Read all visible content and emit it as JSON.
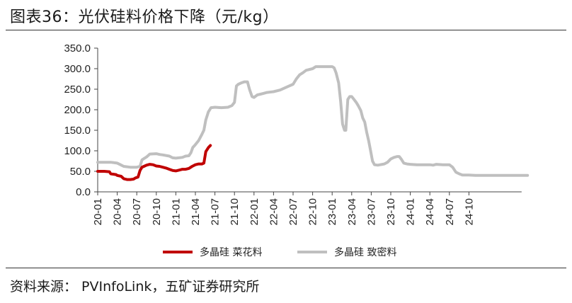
{
  "header": {
    "title": "图表36：光伏硅料价格下降（元/kg）"
  },
  "footer": {
    "source": "资料来源：  PVInfoLink，五矿证券研究所"
  },
  "chart_data": {
    "type": "line",
    "ylim": [
      0,
      350
    ],
    "yticks": [
      0,
      50,
      100,
      150,
      200,
      250,
      300,
      350
    ],
    "ytick_labels": [
      "0.0",
      "50.0",
      "100.0",
      "150.0",
      "200.0",
      "250.0",
      "300.0",
      "350.0"
    ],
    "xticks": [
      "20-01",
      "20-04",
      "20-07",
      "20-10",
      "21-01",
      "21-04",
      "21-07",
      "21-10",
      "22-01",
      "22-04",
      "22-07",
      "22-10",
      "23-01",
      "23-04",
      "23-07",
      "23-10",
      "24-01",
      "24-04",
      "24-07",
      "24-10"
    ],
    "x_unit": "month index from 2020-01",
    "legend_position": "bottom",
    "series": [
      {
        "name": "多晶硅 菜花料",
        "color": "#c00000",
        "points": [
          [
            0,
            50
          ],
          [
            1,
            50
          ],
          [
            1.8,
            49
          ],
          [
            2,
            44
          ],
          [
            2.8,
            42
          ],
          [
            3,
            40
          ],
          [
            3.6,
            38
          ],
          [
            4,
            32
          ],
          [
            4.5,
            30
          ],
          [
            5,
            30
          ],
          [
            5.5,
            31
          ],
          [
            5.8,
            34
          ],
          [
            6.2,
            36
          ],
          [
            6.5,
            52
          ],
          [
            6.8,
            60
          ],
          [
            7.1,
            62
          ],
          [
            7.5,
            65
          ],
          [
            8,
            67
          ],
          [
            8.5,
            66
          ],
          [
            9,
            63
          ],
          [
            9.5,
            62
          ],
          [
            10,
            60
          ],
          [
            10.5,
            58
          ],
          [
            11,
            55
          ],
          [
            11.5,
            52
          ],
          [
            12,
            51
          ],
          [
            12.5,
            53
          ],
          [
            13,
            55
          ],
          [
            13.5,
            55
          ],
          [
            14,
            57
          ],
          [
            14.5,
            62
          ],
          [
            15,
            66
          ],
          [
            15.5,
            68
          ],
          [
            16,
            68
          ],
          [
            16.3,
            70
          ],
          [
            16.6,
            98
          ],
          [
            17,
            108
          ],
          [
            17.3,
            113
          ]
        ]
      },
      {
        "name": "多晶硅 致密料",
        "color": "#bfbfbf",
        "points": [
          [
            0,
            72
          ],
          [
            1,
            72
          ],
          [
            2,
            72
          ],
          [
            3,
            70
          ],
          [
            3.5,
            66
          ],
          [
            4,
            62
          ],
          [
            5,
            60
          ],
          [
            6,
            60
          ],
          [
            6.5,
            62
          ],
          [
            6.8,
            78
          ],
          [
            7.5,
            85
          ],
          [
            8,
            92
          ],
          [
            9,
            93
          ],
          [
            9.5,
            91
          ],
          [
            10,
            90
          ],
          [
            11,
            87
          ],
          [
            11.5,
            83
          ],
          [
            12,
            82
          ],
          [
            13,
            84
          ],
          [
            13.5,
            87
          ],
          [
            14,
            88
          ],
          [
            14.3,
            95
          ],
          [
            14.6,
            108
          ],
          [
            15,
            115
          ],
          [
            15.5,
            125
          ],
          [
            16,
            140
          ],
          [
            16.3,
            150
          ],
          [
            16.6,
            175
          ],
          [
            17,
            195
          ],
          [
            17.4,
            205
          ],
          [
            18,
            206
          ],
          [
            19,
            205
          ],
          [
            20,
            206
          ],
          [
            20.6,
            210
          ],
          [
            21,
            218
          ],
          [
            21.3,
            258
          ],
          [
            21.6,
            262
          ],
          [
            22,
            265
          ],
          [
            22.5,
            268
          ],
          [
            23,
            268
          ],
          [
            23.3,
            250
          ],
          [
            23.7,
            232
          ],
          [
            24,
            230
          ],
          [
            24.5,
            236
          ],
          [
            25,
            238
          ],
          [
            25.5,
            240
          ],
          [
            26,
            242
          ],
          [
            27,
            244
          ],
          [
            28,
            248
          ],
          [
            29,
            255
          ],
          [
            30,
            262
          ],
          [
            30.5,
            275
          ],
          [
            31,
            285
          ],
          [
            31.5,
            290
          ],
          [
            32,
            296
          ],
          [
            33,
            300
          ],
          [
            33.5,
            305
          ],
          [
            35,
            305
          ],
          [
            36,
            305
          ],
          [
            36.3,
            302
          ],
          [
            36.6,
            290
          ],
          [
            37,
            265
          ],
          [
            37.3,
            220
          ],
          [
            37.6,
            165
          ],
          [
            37.9,
            150
          ],
          [
            38.1,
            150
          ],
          [
            38.4,
            225
          ],
          [
            38.7,
            232
          ],
          [
            39,
            232
          ],
          [
            39.3,
            226
          ],
          [
            39.7,
            218
          ],
          [
            40,
            210
          ],
          [
            40.4,
            198
          ],
          [
            40.7,
            180
          ],
          [
            41,
            170
          ],
          [
            41.3,
            145
          ],
          [
            41.6,
            125
          ],
          [
            41.9,
            100
          ],
          [
            42.2,
            75
          ],
          [
            42.5,
            66
          ],
          [
            43,
            65
          ],
          [
            44,
            68
          ],
          [
            44.5,
            72
          ],
          [
            45,
            80
          ],
          [
            45.5,
            84
          ],
          [
            46,
            86
          ],
          [
            46.3,
            86
          ],
          [
            46.6,
            80
          ],
          [
            47,
            70
          ],
          [
            47.5,
            68
          ],
          [
            48,
            67
          ],
          [
            49,
            66
          ],
          [
            50,
            66
          ],
          [
            51,
            66
          ],
          [
            51.5,
            65
          ],
          [
            52,
            67
          ],
          [
            53,
            66
          ],
          [
            54,
            66
          ],
          [
            54.5,
            60
          ],
          [
            55,
            48
          ],
          [
            55.5,
            44
          ],
          [
            56,
            41
          ],
          [
            57,
            41
          ],
          [
            58,
            40
          ],
          [
            59,
            40
          ],
          [
            60,
            40
          ],
          [
            61,
            40
          ],
          [
            62,
            40
          ],
          [
            63,
            40
          ],
          [
            64,
            40
          ],
          [
            65,
            40
          ],
          [
            66,
            40
          ]
        ]
      }
    ]
  }
}
